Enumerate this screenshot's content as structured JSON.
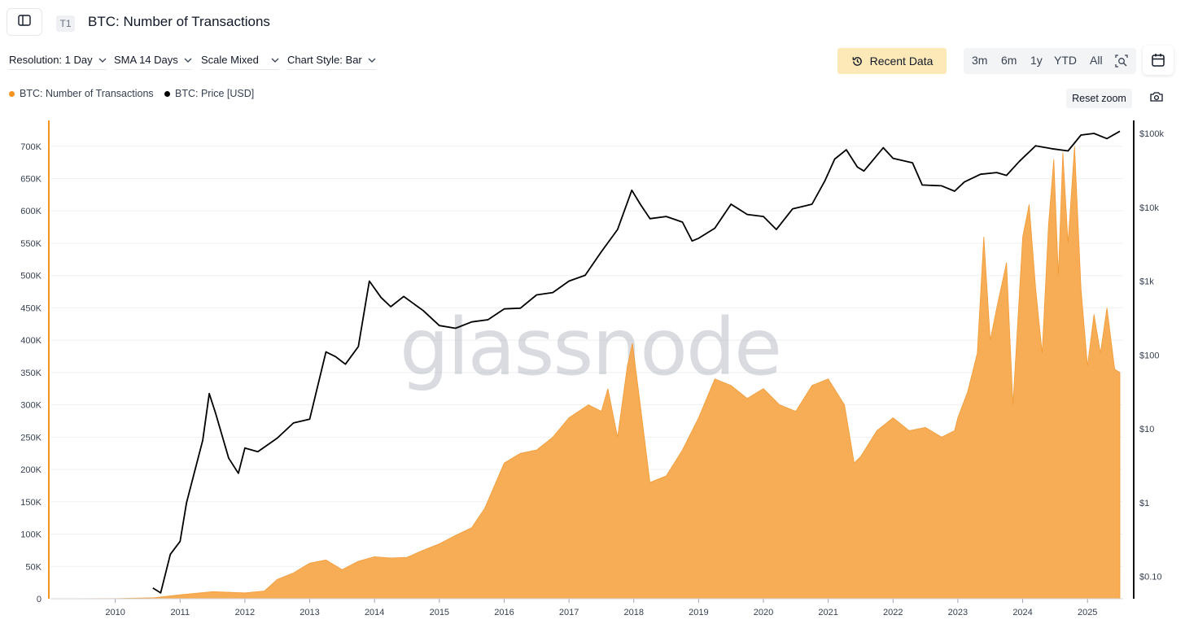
{
  "header": {
    "panel_icon": "sidebar-panel-icon",
    "badge": "T1",
    "title": "BTC: Number of Transactions"
  },
  "controls": {
    "resolution": "Resolution: 1 Day",
    "sma": "SMA 14 Days",
    "scale": "Scale Mixed",
    "chart_style": "Chart Style: Bar",
    "recent_data": "Recent Data",
    "ranges": [
      "3m",
      "6m",
      "1y",
      "YTD",
      "All"
    ],
    "reset_zoom": "Reset zoom"
  },
  "colors": {
    "accent": "#f7941d",
    "area_fill": "#f7a94d",
    "price_line": "#000000",
    "recent_bg": "#fde9b8"
  },
  "chart_data": {
    "type": "area",
    "watermark": "glassnode",
    "legend_placement": "top-left",
    "grid": true,
    "x_ticks": [
      "2010",
      "2011",
      "2012",
      "2013",
      "2014",
      "2015",
      "2016",
      "2017",
      "2018",
      "2019",
      "2020",
      "2021",
      "2022",
      "2023",
      "2024",
      "2025"
    ],
    "y_left_ticks": [
      "0",
      "50K",
      "100K",
      "150K",
      "200K",
      "250K",
      "300K",
      "350K",
      "400K",
      "450K",
      "500K",
      "550K",
      "600K",
      "650K",
      "700K"
    ],
    "y_right_ticks": [
      "$0.10",
      "$1",
      "$10",
      "$100",
      "$1k",
      "$10k",
      "$100k"
    ],
    "ylim_left": [
      0,
      740000
    ],
    "ylim_right_log": [
      0.05,
      150000
    ],
    "series": [
      {
        "name": "BTC: Number of Transactions",
        "axis": "left",
        "color": "#f7941d",
        "points": [
          [
            2009.0,
            0
          ],
          [
            2010.0,
            300
          ],
          [
            2010.6,
            1500
          ],
          [
            2011.0,
            6000
          ],
          [
            2011.5,
            11000
          ],
          [
            2012.0,
            9000
          ],
          [
            2012.3,
            12000
          ],
          [
            2012.5,
            30000
          ],
          [
            2012.75,
            40000
          ],
          [
            2013.0,
            55000
          ],
          [
            2013.25,
            60000
          ],
          [
            2013.5,
            45000
          ],
          [
            2013.75,
            58000
          ],
          [
            2014.0,
            65000
          ],
          [
            2014.25,
            63000
          ],
          [
            2014.5,
            64000
          ],
          [
            2014.75,
            75000
          ],
          [
            2015.0,
            85000
          ],
          [
            2015.25,
            98000
          ],
          [
            2015.5,
            110000
          ],
          [
            2015.7,
            140000
          ],
          [
            2016.0,
            210000
          ],
          [
            2016.25,
            225000
          ],
          [
            2016.5,
            230000
          ],
          [
            2016.75,
            250000
          ],
          [
            2017.0,
            280000
          ],
          [
            2017.3,
            300000
          ],
          [
            2017.5,
            290000
          ],
          [
            2017.6,
            325000
          ],
          [
            2017.75,
            250000
          ],
          [
            2017.9,
            360000
          ],
          [
            2017.98,
            395000
          ],
          [
            2018.1,
            300000
          ],
          [
            2018.25,
            180000
          ],
          [
            2018.5,
            190000
          ],
          [
            2018.75,
            230000
          ],
          [
            2018.9,
            260000
          ],
          [
            2019.0,
            280000
          ],
          [
            2019.25,
            340000
          ],
          [
            2019.5,
            330000
          ],
          [
            2019.75,
            310000
          ],
          [
            2020.0,
            325000
          ],
          [
            2020.25,
            300000
          ],
          [
            2020.5,
            290000
          ],
          [
            2020.75,
            330000
          ],
          [
            2021.0,
            340000
          ],
          [
            2021.25,
            300000
          ],
          [
            2021.4,
            210000
          ],
          [
            2021.5,
            220000
          ],
          [
            2021.75,
            260000
          ],
          [
            2022.0,
            280000
          ],
          [
            2022.25,
            260000
          ],
          [
            2022.5,
            265000
          ],
          [
            2022.75,
            250000
          ],
          [
            2022.95,
            260000
          ],
          [
            2023.0,
            280000
          ],
          [
            2023.15,
            320000
          ],
          [
            2023.3,
            380000
          ],
          [
            2023.4,
            560000
          ],
          [
            2023.5,
            400000
          ],
          [
            2023.6,
            450000
          ],
          [
            2023.75,
            520000
          ],
          [
            2023.85,
            300000
          ],
          [
            2024.0,
            560000
          ],
          [
            2024.1,
            610000
          ],
          [
            2024.2,
            480000
          ],
          [
            2024.3,
            380000
          ],
          [
            2024.4,
            580000
          ],
          [
            2024.48,
            680000
          ],
          [
            2024.55,
            500000
          ],
          [
            2024.62,
            690000
          ],
          [
            2024.7,
            550000
          ],
          [
            2024.8,
            700000
          ],
          [
            2024.9,
            480000
          ],
          [
            2025.0,
            360000
          ],
          [
            2025.1,
            440000
          ],
          [
            2025.2,
            380000
          ],
          [
            2025.3,
            450000
          ],
          [
            2025.42,
            355000
          ],
          [
            2025.5,
            350000
          ]
        ]
      },
      {
        "name": "BTC: Price [USD]",
        "axis": "right",
        "scale": "log",
        "color": "#000000",
        "points": [
          [
            2010.58,
            0.07
          ],
          [
            2010.7,
            0.06
          ],
          [
            2010.85,
            0.2
          ],
          [
            2011.0,
            0.3
          ],
          [
            2011.1,
            1.0
          ],
          [
            2011.35,
            7.0
          ],
          [
            2011.45,
            30.0
          ],
          [
            2011.55,
            16.0
          ],
          [
            2011.75,
            4.0
          ],
          [
            2011.9,
            2.5
          ],
          [
            2012.0,
            5.5
          ],
          [
            2012.2,
            4.9
          ],
          [
            2012.5,
            7.5
          ],
          [
            2012.75,
            12.0
          ],
          [
            2013.0,
            13.5
          ],
          [
            2013.25,
            110.0
          ],
          [
            2013.4,
            95.0
          ],
          [
            2013.55,
            75.0
          ],
          [
            2013.75,
            130.0
          ],
          [
            2013.92,
            1000.0
          ],
          [
            2014.1,
            600.0
          ],
          [
            2014.25,
            450.0
          ],
          [
            2014.45,
            620.0
          ],
          [
            2014.75,
            400.0
          ],
          [
            2015.0,
            250.0
          ],
          [
            2015.25,
            230.0
          ],
          [
            2015.5,
            280.0
          ],
          [
            2015.75,
            300.0
          ],
          [
            2016.0,
            420.0
          ],
          [
            2016.25,
            430.0
          ],
          [
            2016.5,
            650.0
          ],
          [
            2016.75,
            700.0
          ],
          [
            2017.0,
            1000.0
          ],
          [
            2017.25,
            1200.0
          ],
          [
            2017.5,
            2500.0
          ],
          [
            2017.75,
            5000.0
          ],
          [
            2017.97,
            17000.0
          ],
          [
            2018.1,
            11000.0
          ],
          [
            2018.25,
            7000.0
          ],
          [
            2018.5,
            7500.0
          ],
          [
            2018.75,
            6300.0
          ],
          [
            2018.9,
            3500.0
          ],
          [
            2019.0,
            3800.0
          ],
          [
            2019.25,
            5200.0
          ],
          [
            2019.5,
            11000.0
          ],
          [
            2019.75,
            8000.0
          ],
          [
            2020.0,
            7500.0
          ],
          [
            2020.2,
            5000.0
          ],
          [
            2020.45,
            9500.0
          ],
          [
            2020.75,
            11000.0
          ],
          [
            2020.95,
            23000.0
          ],
          [
            2021.1,
            45000.0
          ],
          [
            2021.28,
            60000.0
          ],
          [
            2021.45,
            35000.0
          ],
          [
            2021.55,
            31000.0
          ],
          [
            2021.85,
            64000.0
          ],
          [
            2022.0,
            46000.0
          ],
          [
            2022.3,
            40000.0
          ],
          [
            2022.45,
            20000.0
          ],
          [
            2022.75,
            19500.0
          ],
          [
            2022.95,
            16500.0
          ],
          [
            2023.1,
            22000.0
          ],
          [
            2023.35,
            28000.0
          ],
          [
            2023.6,
            29500.0
          ],
          [
            2023.75,
            27000.0
          ],
          [
            2023.95,
            42000.0
          ],
          [
            2024.2,
            68000.0
          ],
          [
            2024.45,
            62000.0
          ],
          [
            2024.7,
            58000.0
          ],
          [
            2024.9,
            95000.0
          ],
          [
            2025.1,
            100000.0
          ],
          [
            2025.3,
            85000.0
          ],
          [
            2025.5,
            107000.0
          ]
        ]
      }
    ]
  }
}
